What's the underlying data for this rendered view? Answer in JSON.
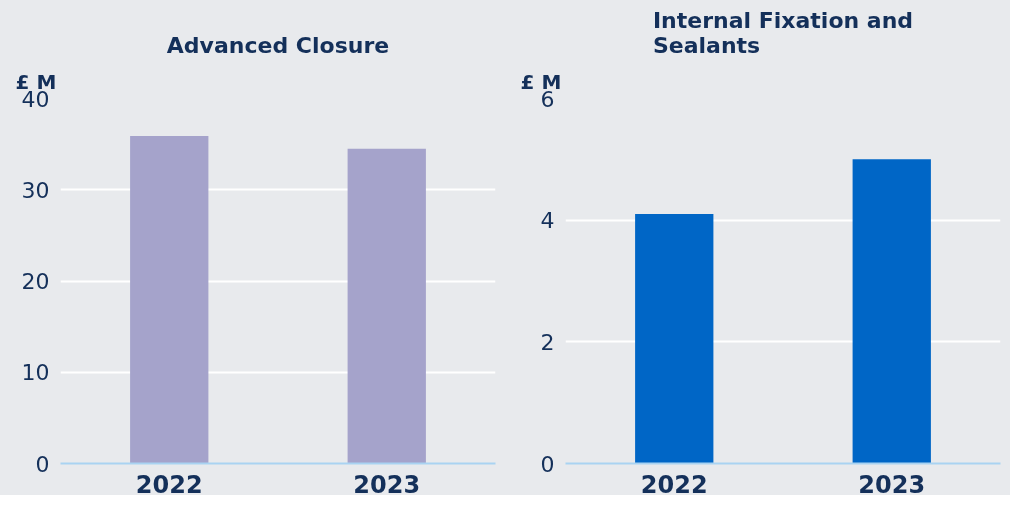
{
  "chart_data": [
    {
      "type": "bar",
      "title": "Advanced Closure",
      "ylabel": "£ M",
      "categories": [
        "2022",
        "2023"
      ],
      "values": [
        35.9,
        34.5
      ],
      "color": "#a5a3cb",
      "ylim": [
        0,
        40
      ],
      "yticks": [
        0,
        10,
        20,
        30,
        40
      ],
      "grid": "y"
    },
    {
      "type": "bar",
      "title": "Internal Fixation and Sealants",
      "ylabel": "£ M",
      "categories": [
        "2022",
        "2023"
      ],
      "values": [
        4.1,
        5.0
      ],
      "color": "#0066c6",
      "ylim": [
        0,
        6
      ],
      "yticks": [
        0,
        2,
        4,
        6
      ],
      "grid": "y"
    }
  ]
}
